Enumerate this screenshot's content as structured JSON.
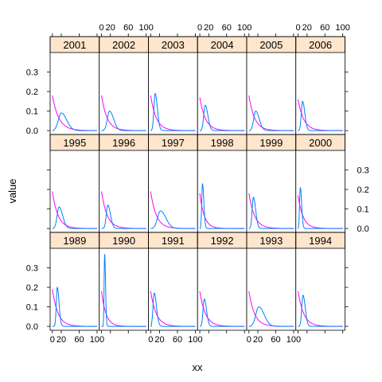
{
  "chart_data": {
    "type": "line",
    "xlabel": "xx",
    "ylabel": "value",
    "xlim": [
      -5,
      105
    ],
    "ylim": [
      -0.02,
      0.4
    ],
    "x_ticks": [
      0,
      20,
      60,
      100
    ],
    "x_tick_labels": [
      "0",
      "20",
      "60",
      "100"
    ],
    "y_ticks": [
      0.0,
      0.1,
      0.2,
      0.3
    ],
    "y_tick_labels": [
      "0.0",
      "0.1",
      "0.2",
      "0.3"
    ],
    "grid": false,
    "strip_color": "#ffe5cc",
    "series": [
      {
        "color": "#0080ff"
      },
      {
        "color": "#ff00ff"
      }
    ],
    "panels": [
      {
        "year": "2001",
        "row": 0,
        "col": 0,
        "peak_x": 20,
        "peak_y": 0.09,
        "width": 12,
        "start": 3,
        "decay_y0": 0.18,
        "decay_rate": 0.07
      },
      {
        "year": "2002",
        "row": 0,
        "col": 1,
        "peak_x": 18,
        "peak_y": 0.1,
        "width": 9,
        "start": 4,
        "decay_y0": 0.18,
        "decay_rate": 0.08
      },
      {
        "year": "2003",
        "row": 0,
        "col": 2,
        "peak_x": 10,
        "peak_y": 0.19,
        "width": 5,
        "start": 2,
        "decay_y0": 0.18,
        "decay_rate": 0.08
      },
      {
        "year": "2004",
        "row": 0,
        "col": 3,
        "peak_x": 12,
        "peak_y": 0.13,
        "width": 6,
        "start": 3,
        "decay_y0": 0.17,
        "decay_rate": 0.08
      },
      {
        "year": "2005",
        "row": 0,
        "col": 4,
        "peak_x": 15,
        "peak_y": 0.1,
        "width": 8,
        "start": 3,
        "decay_y0": 0.18,
        "decay_rate": 0.08
      },
      {
        "year": "2006",
        "row": 0,
        "col": 5,
        "peak_x": 10,
        "peak_y": 0.15,
        "width": 5,
        "start": 2,
        "decay_y0": 0.16,
        "decay_rate": 0.08
      },
      {
        "year": "1995",
        "row": 1,
        "col": 0,
        "peak_x": 15,
        "peak_y": 0.11,
        "width": 8,
        "start": 3,
        "decay_y0": 0.19,
        "decay_rate": 0.08
      },
      {
        "year": "1996",
        "row": 1,
        "col": 1,
        "peak_x": 14,
        "peak_y": 0.12,
        "width": 6,
        "start": 3,
        "decay_y0": 0.19,
        "decay_rate": 0.08
      },
      {
        "year": "1997",
        "row": 1,
        "col": 2,
        "peak_x": 22,
        "peak_y": 0.09,
        "width": 12,
        "start": 4,
        "decay_y0": 0.19,
        "decay_rate": 0.08
      },
      {
        "year": "1998",
        "row": 1,
        "col": 3,
        "peak_x": 6,
        "peak_y": 0.23,
        "width": 3,
        "start": 1,
        "decay_y0": 0.18,
        "decay_rate": 0.1
      },
      {
        "year": "1999",
        "row": 1,
        "col": 4,
        "peak_x": 10,
        "peak_y": 0.16,
        "width": 5,
        "start": 2,
        "decay_y0": 0.18,
        "decay_rate": 0.08
      },
      {
        "year": "2000",
        "row": 1,
        "col": 5,
        "peak_x": 5,
        "peak_y": 0.21,
        "width": 3,
        "start": 1,
        "decay_y0": 0.17,
        "decay_rate": 0.09
      },
      {
        "year": "1989",
        "row": 2,
        "col": 0,
        "peak_x": 11,
        "peak_y": 0.2,
        "width": 4,
        "start": 3,
        "decay_y0": 0.19,
        "decay_rate": 0.08
      },
      {
        "year": "1990",
        "row": 2,
        "col": 1,
        "peak_x": 7,
        "peak_y": 0.37,
        "width": 2,
        "start": 4,
        "decay_y0": 0.18,
        "decay_rate": 0.1
      },
      {
        "year": "1991",
        "row": 2,
        "col": 2,
        "peak_x": 8,
        "peak_y": 0.17,
        "width": 5,
        "start": 2,
        "decay_y0": 0.18,
        "decay_rate": 0.08
      },
      {
        "year": "1992",
        "row": 2,
        "col": 3,
        "peak_x": 10,
        "peak_y": 0.14,
        "width": 5,
        "start": 2,
        "decay_y0": 0.18,
        "decay_rate": 0.08
      },
      {
        "year": "1993",
        "row": 2,
        "col": 4,
        "peak_x": 22,
        "peak_y": 0.1,
        "width": 12,
        "start": 4,
        "decay_y0": 0.18,
        "decay_rate": 0.08
      },
      {
        "year": "1994",
        "row": 2,
        "col": 5,
        "peak_x": 11,
        "peak_y": 0.16,
        "width": 5,
        "start": 3,
        "decay_y0": 0.18,
        "decay_rate": 0.08
      }
    ]
  }
}
